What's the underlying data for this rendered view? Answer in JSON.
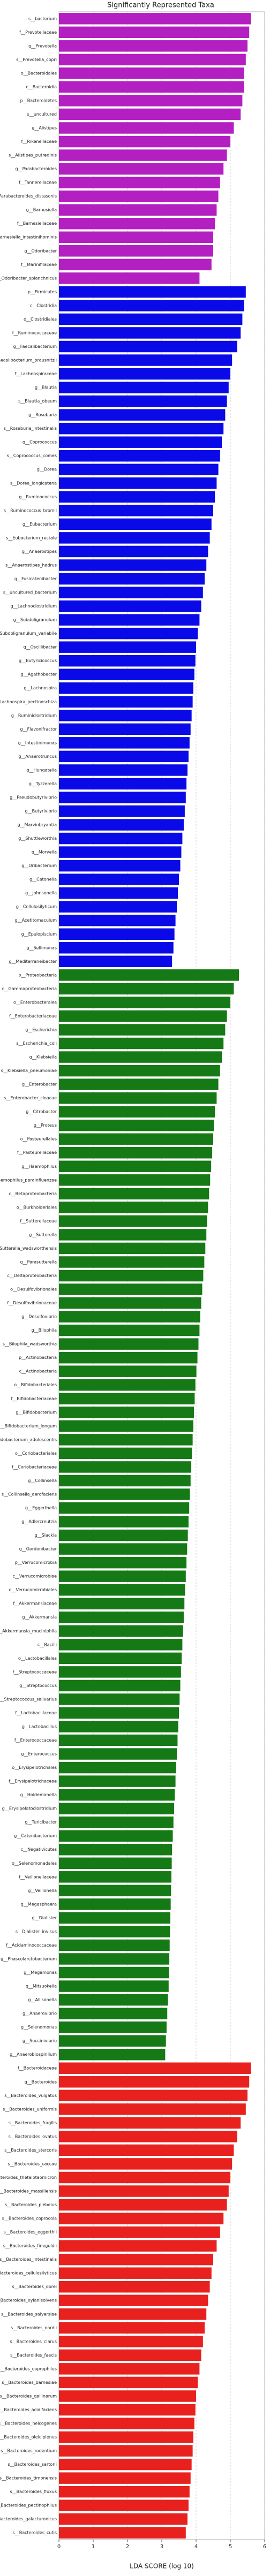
{
  "chart_data": {
    "type": "barh",
    "title": "Significantly Represented Taxa",
    "xlabel": "LDA SCORE (log 10)",
    "xlim": [
      0,
      6
    ],
    "xticks": [
      0,
      1,
      2,
      3,
      4,
      5,
      6
    ],
    "grid": true,
    "groups": [
      {
        "color": "#b31fc0",
        "categories": [
          "s__bacterium",
          "f__Prevotellaceae",
          "g__Prevotella",
          "s__Prevotella_copri",
          "o__Bacteroidales",
          "c__Bacteroidia",
          "p__Bacteroidetes",
          "s__uncultured",
          "g__Alistipes",
          "f__Rikenellaceae",
          "s__Alistipes_putredinis",
          "g__Parabacteroides",
          "f__Tannerellaceae",
          "s__Parabacteroides_distasonis",
          "g__Barnesiella",
          "f__Barnesiellaceae",
          "s__Barnesiella_intestinihominis",
          "g__Odoribacter",
          "f__Marinifilaceae",
          "s__Odoribacter_splanchnicus"
        ],
        "values": [
          5.6,
          5.55,
          5.5,
          5.45,
          5.4,
          5.4,
          5.35,
          5.3,
          5.1,
          5.0,
          4.9,
          4.8,
          4.7,
          4.65,
          4.6,
          4.55,
          4.5,
          4.5,
          4.45,
          4.1
        ]
      },
      {
        "color": "#0a0ae8",
        "categories": [
          "p__Firmicutes",
          "c__Clostridia",
          "o__Clostridiales",
          "f__Ruminococcaceae",
          "g__Faecalibacterium",
          "s__Faecalibacterium_prausnitzii",
          "f__Lachnospiraceae",
          "g__Blautia",
          "s__Blautia_obeum",
          "g__Roseburia",
          "s__Roseburia_intestinalis",
          "g__Coprococcus",
          "s__Coprococcus_comes",
          "g__Dorea",
          "s__Dorea_longicatena",
          "g__Ruminococcus",
          "s__Ruminococcus_bromii",
          "g__Eubacterium",
          "s__Eubacterium_rectale",
          "g__Anaerostipes",
          "s__Anaerostipes_hadrus",
          "g__Fusicatenibacter",
          "s__uncultured_bacterium",
          "g__Lachnoclostridium",
          "g__Subdoligranulum",
          "s__Subdoligranulum_variabile",
          "g__Oscillibacter",
          "g__Butyricicoccus",
          "g__Agathobacter",
          "g__Lachnospira",
          "s__Lachnospira_pectinoschiza",
          "g__Ruminiclostridium",
          "g__Flavonifractor",
          "g__Intestinimonas",
          "g__Anaerotruncus",
          "g__Hungatella",
          "g__Tyzzerella",
          "g__Pseudobutyrivibrio",
          "g__Butyrivibrio",
          "g__Marvinbryantia",
          "g__Shuttleworthia",
          "g__Moryella",
          "g__Oribacterium",
          "g__Catonella",
          "g__Johnsonella",
          "g__Cellulosilyticum",
          "g__Acetitomaculum",
          "g__Epulopiscium",
          "g__Sellimonas",
          "g__Mediterraneibacter"
        ],
        "values": [
          5.45,
          5.4,
          5.35,
          5.3,
          5.2,
          5.05,
          5.0,
          4.95,
          4.9,
          4.85,
          4.8,
          4.75,
          4.7,
          4.65,
          4.6,
          4.55,
          4.5,
          4.45,
          4.4,
          4.35,
          4.3,
          4.25,
          4.2,
          4.15,
          4.1,
          4.05,
          4.0,
          3.98,
          3.95,
          3.92,
          3.9,
          3.87,
          3.84,
          3.81,
          3.78,
          3.75,
          3.72,
          3.7,
          3.67,
          3.64,
          3.6,
          3.57,
          3.54,
          3.5,
          3.47,
          3.44,
          3.4,
          3.37,
          3.34,
          3.3
        ]
      },
      {
        "color": "#157a15",
        "categories": [
          "p__Proteobacteria",
          "c__Gammaproteobacteria",
          "o__Enterobacterales",
          "f__Enterobacteriaceae",
          "g__Escherichia",
          "s__Escherichia_coli",
          "g__Klebsiella",
          "s__Klebsiella_pneumoniae",
          "g__Enterobacter",
          "s__Enterobacter_cloacae",
          "g__Citrobacter",
          "g__Proteus",
          "o__Pasteurellales",
          "f__Pasteurellaceae",
          "g__Haemophilus",
          "s__Haemophilus_parainfluenzae",
          "c__Betaproteobacteria",
          "o__Burkholderiales",
          "f__Sutterellaceae",
          "g__Sutterella",
          "s__Sutterella_wadsworthensis",
          "g__Parasutterella",
          "c__Deltaproteobacteria",
          "o__Desulfovibrionales",
          "f__Desulfovibrionaceae",
          "g__Desulfovibrio",
          "g__Bilophila",
          "s__Bilophila_wadsworthia",
          "p__Actinobacteria",
          "c__Actinobacteria",
          "o__Bifidobacteriales",
          "f__Bifidobacteriaceae",
          "g__Bifidobacterium",
          "s__Bifidobacterium_longum",
          "s__Bifidobacterium_adolescentis",
          "o__Coriobacteriales",
          "f__Coriobacteriaceae",
          "g__Collinsella",
          "s__Collinsella_aerofaciens",
          "g__Eggerthella",
          "g__Adlercreutzia",
          "g__Slackia",
          "g__Gordonibacter",
          "p__Verrucomicrobia",
          "c__Verrucomicrobiae",
          "o__Verrucomicrobiales",
          "f__Akkermansiaceae",
          "g__Akkermansia",
          "s__Akkermansia_muciniphila",
          "c__Bacilli",
          "o__Lactobacillales",
          "f__Streptococcaceae",
          "g__Streptococcus",
          "s__Streptococcus_salivarius",
          "f__Lactobacillaceae",
          "g__Lactobacillus",
          "f__Enterococcaceae",
          "g__Enterococcus",
          "o__Erysipelotrichales",
          "f__Erysipelotrichaceae",
          "g__Holdemanella",
          "g__Erysipelatoclostridium",
          "g__Turicibacter",
          "g__Catenibacterium",
          "c__Negativicutes",
          "o__Selenomonadales",
          "f__Veillonellaceae",
          "g__Veillonella",
          "g__Megasphaera",
          "g__Dialister",
          "s__Dialister_invisus",
          "f__Acidaminococcaceae",
          "g__Phascolarctobacterium",
          "g__Megamonas",
          "g__Mitsuokella",
          "g__Allisonella",
          "g__Anaerovibrio",
          "g__Selenomonas",
          "g__Succinivibrio",
          "g__Anaerobiospirillum"
        ],
        "values": [
          5.25,
          5.1,
          5.0,
          4.9,
          4.85,
          4.8,
          4.75,
          4.7,
          4.65,
          4.6,
          4.55,
          4.52,
          4.5,
          4.47,
          4.44,
          4.41,
          4.38,
          4.35,
          4.32,
          4.3,
          4.27,
          4.24,
          4.21,
          4.18,
          4.15,
          4.12,
          4.1,
          4.07,
          4.04,
          4.01,
          3.98,
          3.96,
          3.94,
          3.92,
          3.9,
          3.88,
          3.86,
          3.84,
          3.82,
          3.8,
          3.78,
          3.76,
          3.74,
          3.72,
          3.7,
          3.68,
          3.66,
          3.64,
          3.62,
          3.6,
          3.58,
          3.56,
          3.54,
          3.52,
          3.5,
          3.48,
          3.46,
          3.44,
          3.42,
          3.4,
          3.38,
          3.36,
          3.34,
          3.32,
          3.3,
          3.29,
          3.28,
          3.27,
          3.26,
          3.25,
          3.24,
          3.23,
          3.22,
          3.21,
          3.2,
          3.18,
          3.16,
          3.14,
          3.12,
          3.1
        ]
      },
      {
        "color": "#e8211e",
        "categories": [
          "f__Bacteroidaceae",
          "g__Bacteroides",
          "s__Bacteroides_vulgatus",
          "s__Bacteroides_uniformis",
          "s__Bacteroides_fragilis",
          "s__Bacteroides_ovatus",
          "s__Bacteroides_stercoris",
          "s__Bacteroides_caccae",
          "s__Bacteroides_thetaiotaomicron",
          "s__Bacteroides_massiliensis",
          "s__Bacteroides_plebeius",
          "s__Bacteroides_coprocola",
          "s__Bacteroides_eggerthii",
          "s__Bacteroides_finegoldii",
          "s__Bacteroides_intestinalis",
          "s__Bacteroides_cellulosilyticus",
          "s__Bacteroides_dorei",
          "s__Bacteroides_xylanisolvens",
          "s__Bacteroides_salyersiae",
          "s__Bacteroides_nordii",
          "s__Bacteroides_clarus",
          "s__Bacteroides_faecis",
          "s__Bacteroides_coprophilus",
          "s__Bacteroides_barnesiae",
          "s__Bacteroides_gallinarum",
          "s__Bacteroides_acidifaciens",
          "s__Bacteroides_helcogenes",
          "s__Bacteroides_oleiciplenus",
          "s__Bacteroides_rodentium",
          "s__Bacteroides_sartorii",
          "s__Bacteroides_timonensis",
          "s__Bacteroides_fluxus",
          "s__Bacteroides_pectinophilus",
          "s__Bacteroides_galacturonicus",
          "s__Bacteroides_cutis"
        ],
        "values": [
          5.6,
          5.55,
          5.5,
          5.45,
          5.3,
          5.2,
          5.1,
          5.05,
          5.0,
          4.95,
          4.9,
          4.8,
          4.7,
          4.6,
          4.5,
          4.45,
          4.4,
          4.35,
          4.3,
          4.25,
          4.2,
          4.15,
          4.1,
          4.05,
          4.0,
          3.98,
          3.95,
          3.92,
          3.9,
          3.87,
          3.84,
          3.81,
          3.78,
          3.75,
          3.7
        ]
      }
    ]
  }
}
